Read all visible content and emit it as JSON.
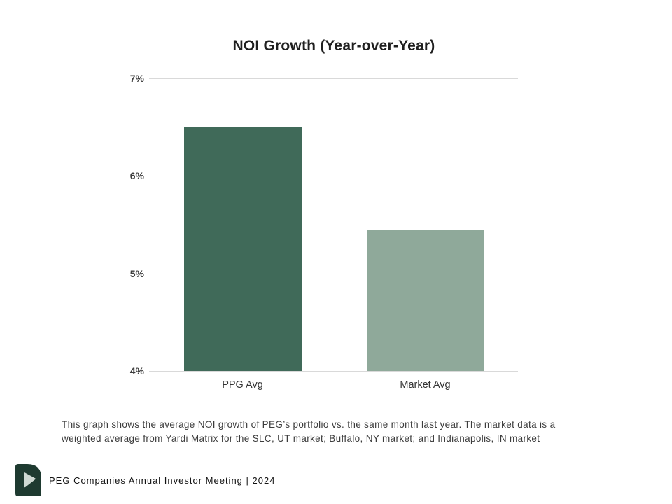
{
  "chart_data": {
    "type": "bar",
    "title": "NOI Growth (Year-over-Year)",
    "categories": [
      "PPG Avg",
      "Market Avg"
    ],
    "values": [
      6.5,
      5.45
    ],
    "unit": "%",
    "ylim": [
      4,
      7
    ],
    "yticks": [
      7,
      6,
      5,
      4
    ],
    "ytick_labels": [
      "7%",
      "6%",
      "5%",
      "4%"
    ],
    "bar_colors": [
      "#406a59",
      "#8fa99a"
    ],
    "gridline_color": "#d9d9d9",
    "grid": true,
    "legend_position": "none",
    "xlabel": "",
    "ylabel": ""
  },
  "caption": {
    "line1": "This graph shows the average NOI growth of PEG’s portfolio vs. the same month last year. The market data is a",
    "line2": "weighted average from Yardi Matrix for the SLC, UT market; Buffalo, NY market; and Indianapolis, IN market"
  },
  "footer": {
    "text": "PEG Companies Annual Investor Meeting | 2024",
    "logo": "peg-logo",
    "logo_color": "#1e3a30",
    "logo_glyph_color": "#cfd9d3"
  }
}
